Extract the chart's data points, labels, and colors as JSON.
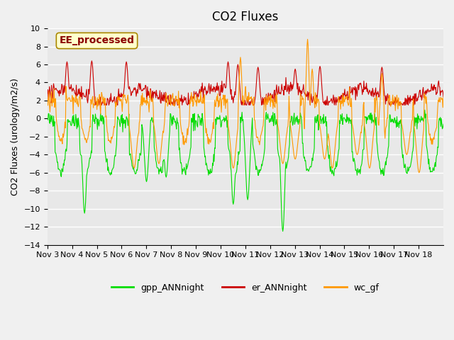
{
  "title": "CO2 Fluxes",
  "ylabel": "CO2 Fluxes (urology/m2/s)",
  "ylim": [
    -14,
    10
  ],
  "yticks": [
    -14,
    -12,
    -10,
    -8,
    -6,
    -4,
    -2,
    0,
    2,
    4,
    6,
    8,
    10
  ],
  "x_tick_labels": [
    "Nov 3",
    "Nov 4",
    "Nov 5",
    "Nov 6",
    "Nov 7",
    "Nov 8",
    "Nov 9",
    "Nov 10",
    "Nov 11",
    "Nov 12",
    "Nov 13",
    "Nov 14",
    "Nov 15",
    "Nov 16",
    "Nov 17",
    "Nov 18"
  ],
  "color_gpp": "#00dd00",
  "color_er": "#cc0000",
  "color_wc": "#ff9900",
  "legend_labels": [
    "gpp_ANNnight",
    "er_ANNnight",
    "wc_gf"
  ],
  "annotation_text": "EE_processed",
  "annotation_color": "#8b0000",
  "annotation_bg": "#ffffcc",
  "plot_bg": "#e8e8e8",
  "fig_bg": "#f0f0f0",
  "grid_color": "#ffffff",
  "title_fontsize": 12,
  "axis_fontsize": 9,
  "tick_fontsize": 8,
  "n_days": 16,
  "n_per_day": 48
}
